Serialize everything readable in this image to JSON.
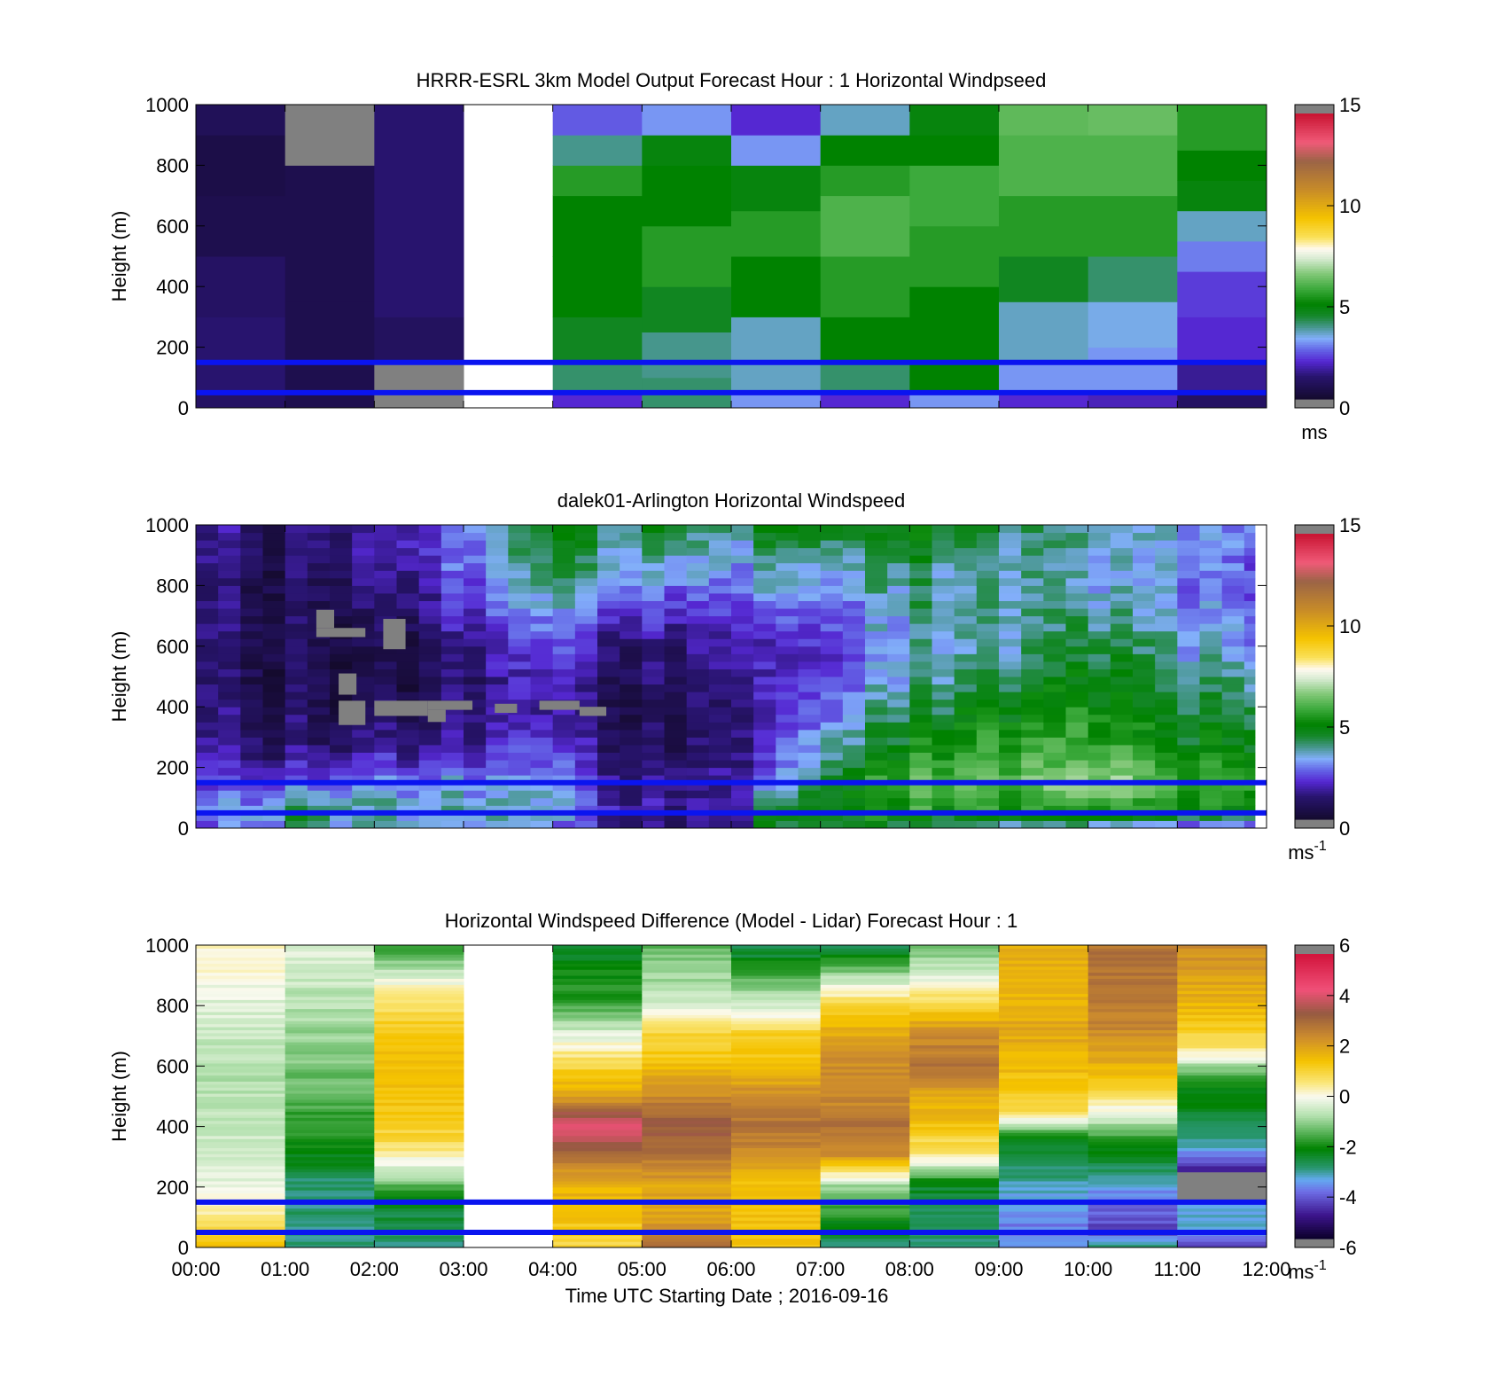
{
  "chart_data": [
    {
      "type": "heatmap",
      "title": "HRRR-ESRL 3km Model Output   Forecast Hour : 1 Horizontal Windpseed",
      "ylabel": "Height (m)",
      "xlabel": "",
      "ylim": [
        0,
        1000
      ],
      "yticks": [
        "0",
        "200",
        "400",
        "600",
        "800",
        "1000"
      ],
      "xlim": [
        0,
        12
      ],
      "colorbar": {
        "min": 0,
        "max": 15,
        "ticks": [
          "0",
          "5",
          "10",
          "15"
        ],
        "unit": "ms",
        "sup": "",
        "colormap": "speed"
      },
      "reference_lines_m": [
        150,
        50
      ],
      "grid": "off",
      "columns": [
        {
          "x0": 0,
          "x1": 1,
          "heights": [
            0,
            50,
            150,
            300,
            500,
            700,
            900,
            1000
          ],
          "values": [
            1.0,
            1.2,
            1.2,
            1.0,
            0.6,
            0.5,
            0.8,
            1.5
          ]
        },
        {
          "x0": 1,
          "x1": 2,
          "heights": [
            0,
            350,
            800,
            1000
          ],
          "values": [
            0.6,
            0.6,
            null,
            0.5
          ]
        },
        {
          "x0": 2,
          "x1": 3,
          "heights": [
            0,
            40,
            150,
            300,
            1000
          ],
          "values": [
            null,
            null,
            0.9,
            1.2,
            1.8
          ]
        },
        {
          "x0": 3,
          "x1": 4,
          "heights": [
            0,
            1000
          ],
          "values": [
            null
          ]
        },
        {
          "x0": 4,
          "x1": 5,
          "heights": [
            0,
            50,
            150,
            300,
            500,
            700,
            800,
            900,
            1000
          ],
          "values": [
            2.0,
            4.0,
            4.5,
            5.0,
            5.0,
            5.5,
            3.8,
            2.5,
            2.0
          ]
        },
        {
          "x0": 5,
          "x1": 6,
          "heights": [
            0,
            100,
            250,
            400,
            600,
            800,
            900,
            1000
          ],
          "values": [
            4.0,
            3.8,
            4.5,
            5.5,
            5.0,
            4.8,
            3.0,
            2.2
          ]
        },
        {
          "x0": 6,
          "x1": 7,
          "heights": [
            0,
            50,
            150,
            300,
            500,
            650,
            800,
            900,
            1000
          ],
          "values": [
            3.0,
            3.5,
            3.5,
            5.0,
            5.5,
            4.8,
            3.0,
            2.0,
            1.8
          ]
        },
        {
          "x0": 7,
          "x1": 8,
          "heights": [
            0,
            50,
            150,
            300,
            500,
            700,
            800,
            900,
            1000
          ],
          "values": [
            2.0,
            4.0,
            5.0,
            5.5,
            6.0,
            5.5,
            5.0,
            3.5,
            2.2
          ]
        },
        {
          "x0": 8,
          "x1": 9,
          "heights": [
            0,
            50,
            200,
            400,
            600,
            800,
            900,
            1000
          ],
          "values": [
            3.0,
            5.0,
            5.0,
            5.5,
            5.8,
            5.0,
            4.8,
            4.8
          ]
        },
        {
          "x0": 9,
          "x1": 10,
          "heights": [
            0,
            50,
            150,
            350,
            500,
            700,
            900,
            1000
          ],
          "values": [
            2.0,
            3.0,
            3.5,
            4.5,
            5.5,
            6.0,
            6.2,
            6.5
          ]
        },
        {
          "x0": 10,
          "x1": 11,
          "heights": [
            0,
            50,
            200,
            350,
            500,
            700,
            900,
            1000
          ],
          "values": [
            1.8,
            3.0,
            3.3,
            4.0,
            5.5,
            6.0,
            6.3,
            6.5
          ]
        },
        {
          "x0": 11,
          "x1": 12,
          "heights": [
            0,
            50,
            150,
            300,
            450,
            550,
            650,
            750,
            850,
            1000
          ],
          "values": [
            1.0,
            1.5,
            2.0,
            2.2,
            2.8,
            3.5,
            4.8,
            5.0,
            5.5,
            6.5
          ]
        }
      ]
    },
    {
      "type": "heatmap",
      "title": "dalek01-Arlington  Horizontal Windspeed",
      "ylabel": "Height (m)",
      "xlabel": "",
      "ylim": [
        0,
        1000
      ],
      "yticks": [
        "0",
        "200",
        "400",
        "600",
        "800",
        "1000"
      ],
      "xlim": [
        0,
        12
      ],
      "colorbar": {
        "min": 0,
        "max": 15,
        "ticks": [
          "0",
          "5",
          "10",
          "15"
        ],
        "unit": "ms",
        "sup": "-1",
        "colormap": "speed"
      },
      "reference_lines_m": [
        150,
        50
      ],
      "grid": "off",
      "time_step_h": 0.25,
      "height_step_m": 25,
      "data_end_h": 11.87,
      "profiles": [
        {
          "t": 0.0,
          "heights": [
            0,
            50,
            150,
            250,
            400,
            600,
            800,
            1000
          ],
          "values": [
            2.0,
            2.5,
            2.0,
            1.5,
            1.0,
            1.0,
            1.0,
            1.2
          ]
        },
        {
          "t": 1.0,
          "heights": [
            0,
            50,
            150,
            250,
            400,
            600,
            800,
            1000
          ],
          "values": [
            3.5,
            4.5,
            2.5,
            1.2,
            0.8,
            0.8,
            1.0,
            1.2
          ]
        },
        {
          "t": 2.0,
          "heights": [
            0,
            50,
            150,
            250,
            400,
            600,
            800,
            1000
          ],
          "values": [
            3.5,
            3.5,
            3.0,
            1.5,
            0.6,
            0.5,
            1.2,
            1.8
          ]
        },
        {
          "t": 3.0,
          "heights": [
            0,
            50,
            150,
            250,
            400,
            600,
            800,
            1000
          ],
          "values": [
            3.0,
            3.5,
            3.0,
            1.8,
            1.0,
            1.3,
            2.5,
            3.0
          ]
        },
        {
          "t": 4.0,
          "heights": [
            0,
            50,
            150,
            250,
            400,
            600,
            800,
            1000
          ],
          "values": [
            2.0,
            3.0,
            2.5,
            1.8,
            1.3,
            2.0,
            3.5,
            4.5
          ]
        },
        {
          "t": 5.0,
          "heights": [
            0,
            50,
            150,
            250,
            400,
            600,
            800,
            1000
          ],
          "values": [
            1.0,
            1.5,
            1.5,
            1.0,
            0.8,
            1.2,
            3.0,
            4.5
          ]
        },
        {
          "t": 6.0,
          "heights": [
            0,
            50,
            150,
            250,
            400,
            600,
            800,
            1000
          ],
          "values": [
            1.0,
            1.5,
            1.5,
            1.0,
            1.0,
            1.5,
            2.5,
            3.5
          ]
        },
        {
          "t": 6.2,
          "heights": [
            0,
            50,
            150,
            250,
            400,
            600,
            800,
            1000
          ],
          "values": [
            4.0,
            4.5,
            2.0,
            1.5,
            1.5,
            1.5,
            3.0,
            4.5
          ]
        },
        {
          "t": 7.0,
          "heights": [
            0,
            50,
            150,
            250,
            400,
            600,
            800,
            1000
          ],
          "values": [
            4.5,
            5.0,
            4.5,
            3.8,
            2.5,
            2.0,
            3.0,
            4.5
          ]
        },
        {
          "t": 8.0,
          "heights": [
            0,
            50,
            150,
            250,
            400,
            600,
            800,
            1000
          ],
          "values": [
            4.0,
            5.5,
            6.5,
            5.5,
            4.5,
            3.5,
            4.0,
            4.8
          ]
        },
        {
          "t": 9.0,
          "heights": [
            0,
            50,
            150,
            250,
            400,
            600,
            800,
            1000
          ],
          "values": [
            3.5,
            5.0,
            6.0,
            5.5,
            4.8,
            3.5,
            3.5,
            4.0
          ]
        },
        {
          "t": 10.0,
          "heights": [
            0,
            50,
            150,
            250,
            400,
            600,
            800,
            1000
          ],
          "values": [
            3.0,
            5.0,
            6.5,
            5.5,
            4.8,
            4.0,
            3.0,
            3.2
          ]
        },
        {
          "t": 11.0,
          "heights": [
            0,
            50,
            150,
            250,
            400,
            600,
            800,
            1000
          ],
          "values": [
            2.5,
            5.0,
            6.0,
            5.0,
            4.5,
            3.5,
            3.0,
            3.2
          ]
        },
        {
          "t": 11.87,
          "heights": [
            0,
            50,
            150,
            250,
            400,
            600,
            800,
            1000
          ],
          "values": [
            2.5,
            5.0,
            6.0,
            5.0,
            4.5,
            3.0,
            2.5,
            3.0
          ]
        }
      ],
      "missing_segments": [
        {
          "t0": 1.35,
          "t1": 1.55,
          "h0": 660,
          "h1": 720
        },
        {
          "t0": 1.35,
          "t1": 1.9,
          "h0": 630,
          "h1": 660
        },
        {
          "t0": 2.1,
          "t1": 2.35,
          "h0": 590,
          "h1": 690
        },
        {
          "t0": 1.6,
          "t1": 1.8,
          "h0": 440,
          "h1": 510
        },
        {
          "t0": 1.6,
          "t1": 1.9,
          "h0": 340,
          "h1": 420
        },
        {
          "t0": 2.0,
          "t1": 2.6,
          "h0": 370,
          "h1": 420
        },
        {
          "t0": 2.6,
          "t1": 3.1,
          "h0": 390,
          "h1": 420
        },
        {
          "t0": 2.6,
          "t1": 2.8,
          "h0": 350,
          "h1": 390
        },
        {
          "t0": 3.35,
          "t1": 3.6,
          "h0": 380,
          "h1": 410
        },
        {
          "t0": 3.85,
          "t1": 4.3,
          "h0": 390,
          "h1": 420
        },
        {
          "t0": 4.3,
          "t1": 4.6,
          "h0": 370,
          "h1": 400
        }
      ]
    },
    {
      "type": "heatmap",
      "title": "Horizontal Windspeed Difference (Model - Lidar) Forecast Hour : 1",
      "ylabel": "Height (m)",
      "xlabel": "Time UTC  Starting Date ; 2016-09-16",
      "ylim": [
        0,
        1000
      ],
      "yticks": [
        "0",
        "200",
        "400",
        "600",
        "800",
        "1000"
      ],
      "xlim": [
        0,
        12
      ],
      "xticks": [
        "00:00",
        "01:00",
        "02:00",
        "03:00",
        "04:00",
        "05:00",
        "06:00",
        "07:00",
        "08:00",
        "09:00",
        "10:00",
        "11:00",
        "12:00"
      ],
      "colorbar": {
        "min": -6,
        "max": 6,
        "ticks": [
          "-6",
          "-4",
          "-2",
          "0",
          "2",
          "4",
          "6"
        ],
        "unit": "ms",
        "sup": "-1",
        "colormap": "diff"
      },
      "reference_lines_m": [
        150,
        50
      ],
      "grid": "off",
      "height_step_m": 10,
      "columns": [
        {
          "x0": 0,
          "x1": 1,
          "heights": [
            0,
            50,
            130,
            250,
            400,
            600,
            800,
            1000
          ],
          "values": [
            1.5,
            1.0,
            0.2,
            -0.3,
            -0.6,
            -0.8,
            -0.3,
            0.3
          ]
        },
        {
          "x0": 1,
          "x1": 2,
          "heights": [
            0,
            100,
            200,
            300,
            500,
            700,
            900,
            1000
          ],
          "values": [
            -3.0,
            -3.0,
            -3.0,
            -2.3,
            -1.5,
            -1.0,
            -0.5,
            -0.3
          ]
        },
        {
          "x0": 2,
          "x1": 3,
          "heights": [
            0,
            150,
            250,
            350,
            500,
            700,
            850,
            1000
          ],
          "values": [
            -3.0,
            -2.5,
            -0.5,
            1.0,
            1.5,
            1.5,
            0.3,
            -2.0
          ]
        },
        {
          "x0": 3,
          "x1": 4,
          "heights": [
            0,
            1000
          ],
          "values": [
            null
          ]
        },
        {
          "x0": 4,
          "x1": 5,
          "heights": [
            0,
            100,
            200,
            300,
            400,
            500,
            600,
            700,
            800,
            1000
          ],
          "values": [
            1.0,
            1.5,
            1.8,
            3.0,
            4.5,
            2.0,
            1.0,
            -0.3,
            -1.8,
            -2.5
          ]
        },
        {
          "x0": 5,
          "x1": 6,
          "heights": [
            0,
            100,
            200,
            300,
            400,
            500,
            600,
            700,
            800,
            1000
          ],
          "values": [
            3.0,
            2.0,
            2.0,
            3.0,
            3.5,
            2.5,
            1.5,
            1.0,
            -0.5,
            -1.5
          ]
        },
        {
          "x0": 6,
          "x1": 7,
          "heights": [
            0,
            100,
            200,
            300,
            400,
            500,
            600,
            700,
            800,
            1000
          ],
          "values": [
            1.5,
            1.5,
            1.5,
            2.5,
            3.0,
            2.5,
            1.5,
            1.2,
            -0.5,
            -3.0
          ]
        },
        {
          "x0": 7,
          "x1": 8,
          "heights": [
            0,
            100,
            200,
            300,
            400,
            500,
            600,
            700,
            800,
            1000
          ],
          "values": [
            -3.0,
            -2.0,
            -1.0,
            2.5,
            3.0,
            2.5,
            2.5,
            2.0,
            1.0,
            -3.0
          ]
        },
        {
          "x0": 8,
          "x1": 9,
          "heights": [
            0,
            100,
            200,
            300,
            400,
            500,
            600,
            700,
            800,
            900,
            1000
          ],
          "values": [
            -3.0,
            -2.8,
            -2.5,
            0.5,
            1.5,
            2.0,
            3.0,
            2.5,
            1.0,
            -0.5,
            -1.5
          ]
        },
        {
          "x0": 9,
          "x1": 10,
          "heights": [
            0,
            50,
            150,
            250,
            350,
            450,
            550,
            700,
            850,
            1000
          ],
          "values": [
            -3.5,
            -4.0,
            -3.5,
            -3.0,
            -2.5,
            1.0,
            1.5,
            2.0,
            1.8,
            2.0
          ]
        },
        {
          "x0": 10,
          "x1": 11,
          "heights": [
            0,
            50,
            150,
            250,
            350,
            450,
            550,
            700,
            850,
            1000
          ],
          "values": [
            -3.0,
            -4.5,
            -4.0,
            -3.0,
            -2.0,
            0.0,
            1.5,
            2.5,
            3.0,
            3.0
          ]
        },
        {
          "x0": 11,
          "x1": 12,
          "heights": [
            0,
            50,
            150,
            250,
            350,
            450,
            550,
            650,
            750,
            850,
            1000
          ],
          "values": [
            -4.5,
            -3.5,
            null,
            -5.0,
            -3.0,
            -2.5,
            -2.0,
            0.5,
            1.5,
            2.0,
            2.5
          ]
        }
      ]
    }
  ]
}
